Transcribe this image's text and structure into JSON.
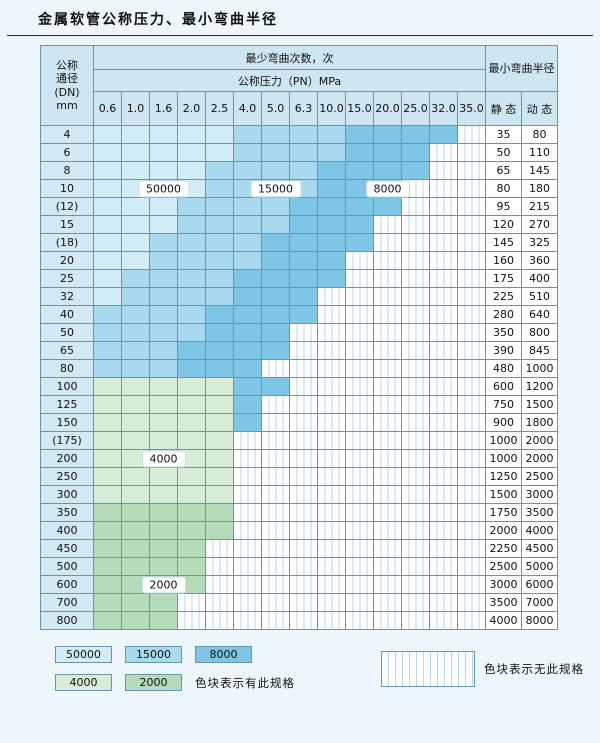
{
  "title": "金属软管公称压力、最小弯曲半径",
  "colors": {
    "cycles_50000": "#d2ecf8",
    "cycles_15000": "#a9d9ef",
    "cycles_8000": "#7ec5e6",
    "cycles_4000": "#d8edd8",
    "cycles_2000": "#b4dcba",
    "grid_line": "#6d93a7",
    "header_bg": "#cde6f2",
    "hatch_line": "#b9d6e6",
    "page_bg": "#edf6fa"
  },
  "table": {
    "header": {
      "dn_line1": "公称",
      "dn_line2": "通径",
      "dn_line3": "(DN)",
      "dn_line4": "mm",
      "cycles_title": "最少弯曲次数，次",
      "pressure_title": "公称压力（PN）MPa",
      "radius_title": "最小弯曲半径",
      "static_label": "静 态",
      "dynamic_label": "动 态"
    },
    "overlays": [
      {
        "row": 3,
        "col": 2,
        "text": "50000"
      },
      {
        "row": 3,
        "col": 6,
        "text": "15000"
      },
      {
        "row": 3,
        "col": 10,
        "text": "8000"
      },
      {
        "row": 18,
        "col": 2,
        "text": "4000"
      },
      {
        "row": 25,
        "col": 2,
        "text": "2000"
      }
    ]
  },
  "legend": {
    "row1": [
      {
        "text": "50000",
        "cls": "b1"
      },
      {
        "text": "15000",
        "cls": "b2"
      },
      {
        "text": "8000",
        "cls": "b3"
      }
    ],
    "row2": [
      {
        "text": "4000",
        "cls": "g1"
      },
      {
        "text": "2000",
        "cls": "g2"
      }
    ],
    "has_spec_text": "色块表示有此规格",
    "no_spec_text": "色块表示无此规格"
  },
  "chart_data": {
    "type": "table",
    "title": "金属软管公称压力、最小弯曲半径",
    "pressure_columns_MPa": [
      0.6,
      1.0,
      1.6,
      2.0,
      2.5,
      4.0,
      5.0,
      6.3,
      10.0,
      15.0,
      20.0,
      25.0,
      32.0,
      35.0
    ],
    "cell_class_meaning": {
      "b1": "最少弯曲次数 50000 次",
      "b2": "最少弯曲次数 15000 次",
      "b3": "最少弯曲次数 8000 次",
      "g1": "最少弯曲次数 4000 次",
      "g2": "最少弯曲次数 2000 次",
      "x": "无此规格"
    },
    "radius_columns": [
      "静态",
      "动态"
    ],
    "rows": [
      {
        "dn": "4",
        "cells": [
          "b1",
          "b1",
          "b1",
          "b1",
          "b1",
          "b2",
          "b2",
          "b2",
          "b2",
          "b3",
          "b3",
          "b3",
          "b3",
          "x"
        ],
        "static": 35,
        "dynamic": 80
      },
      {
        "dn": "6",
        "cells": [
          "b1",
          "b1",
          "b1",
          "b1",
          "b1",
          "b2",
          "b2",
          "b2",
          "b2",
          "b3",
          "b3",
          "b3",
          "x",
          "x"
        ],
        "static": 50,
        "dynamic": 110
      },
      {
        "dn": "8",
        "cells": [
          "b1",
          "b1",
          "b1",
          "b1",
          "b2",
          "b2",
          "b2",
          "b2",
          "b3",
          "b3",
          "b3",
          "b3",
          "x",
          "x"
        ],
        "static": 65,
        "dynamic": 145
      },
      {
        "dn": "10",
        "cells": [
          "b1",
          "b1",
          "b1",
          "b1",
          "b2",
          "b2",
          "b2",
          "b2",
          "b3",
          "b3",
          "b3",
          "x",
          "x",
          "x"
        ],
        "static": 80,
        "dynamic": 180
      },
      {
        "dn": "(12)",
        "cells": [
          "b1",
          "b1",
          "b1",
          "b2",
          "b2",
          "b2",
          "b2",
          "b3",
          "b3",
          "b3",
          "b3",
          "x",
          "x",
          "x"
        ],
        "static": 95,
        "dynamic": 215
      },
      {
        "dn": "15",
        "cells": [
          "b1",
          "b1",
          "b1",
          "b2",
          "b2",
          "b2",
          "b2",
          "b3",
          "b3",
          "b3",
          "x",
          "x",
          "x",
          "x"
        ],
        "static": 120,
        "dynamic": 270
      },
      {
        "dn": "(18)",
        "cells": [
          "b1",
          "b1",
          "b2",
          "b2",
          "b2",
          "b2",
          "b3",
          "b3",
          "b3",
          "b3",
          "x",
          "x",
          "x",
          "x"
        ],
        "static": 145,
        "dynamic": 325
      },
      {
        "dn": "20",
        "cells": [
          "b1",
          "b1",
          "b2",
          "b2",
          "b2",
          "b2",
          "b3",
          "b3",
          "b3",
          "x",
          "x",
          "x",
          "x",
          "x"
        ],
        "static": 160,
        "dynamic": 360
      },
      {
        "dn": "25",
        "cells": [
          "b1",
          "b2",
          "b2",
          "b2",
          "b2",
          "b3",
          "b3",
          "b3",
          "b3",
          "x",
          "x",
          "x",
          "x",
          "x"
        ],
        "static": 175,
        "dynamic": 400
      },
      {
        "dn": "32",
        "cells": [
          "b1",
          "b2",
          "b2",
          "b2",
          "b2",
          "b3",
          "b3",
          "b3",
          "x",
          "x",
          "x",
          "x",
          "x",
          "x"
        ],
        "static": 225,
        "dynamic": 510
      },
      {
        "dn": "40",
        "cells": [
          "b2",
          "b2",
          "b2",
          "b2",
          "b3",
          "b3",
          "b3",
          "b3",
          "x",
          "x",
          "x",
          "x",
          "x",
          "x"
        ],
        "static": 280,
        "dynamic": 640
      },
      {
        "dn": "50",
        "cells": [
          "b2",
          "b2",
          "b2",
          "b2",
          "b3",
          "b3",
          "b3",
          "x",
          "x",
          "x",
          "x",
          "x",
          "x",
          "x"
        ],
        "static": 350,
        "dynamic": 800
      },
      {
        "dn": "65",
        "cells": [
          "b2",
          "b2",
          "b2",
          "b3",
          "b3",
          "b3",
          "b3",
          "x",
          "x",
          "x",
          "x",
          "x",
          "x",
          "x"
        ],
        "static": 390,
        "dynamic": 845
      },
      {
        "dn": "80",
        "cells": [
          "b2",
          "b2",
          "b2",
          "b3",
          "b3",
          "b3",
          "x",
          "x",
          "x",
          "x",
          "x",
          "x",
          "x",
          "x"
        ],
        "static": 480,
        "dynamic": 1000
      },
      {
        "dn": "100",
        "cells": [
          "g1",
          "g1",
          "g1",
          "g1",
          "g1",
          "b3",
          "b3",
          "x",
          "x",
          "x",
          "x",
          "x",
          "x",
          "x"
        ],
        "static": 600,
        "dynamic": 1200
      },
      {
        "dn": "125",
        "cells": [
          "g1",
          "g1",
          "g1",
          "g1",
          "g1",
          "b3",
          "x",
          "x",
          "x",
          "x",
          "x",
          "x",
          "x",
          "x"
        ],
        "static": 750,
        "dynamic": 1500
      },
      {
        "dn": "150",
        "cells": [
          "g1",
          "g1",
          "g1",
          "g1",
          "g1",
          "b3",
          "x",
          "x",
          "x",
          "x",
          "x",
          "x",
          "x",
          "x"
        ],
        "static": 900,
        "dynamic": 1800
      },
      {
        "dn": "(175)",
        "cells": [
          "g1",
          "g1",
          "g1",
          "g1",
          "g1",
          "x",
          "x",
          "x",
          "x",
          "x",
          "x",
          "x",
          "x",
          "x"
        ],
        "static": 1000,
        "dynamic": 2000
      },
      {
        "dn": "200",
        "cells": [
          "g1",
          "g1",
          "g1",
          "g1",
          "g1",
          "x",
          "x",
          "x",
          "x",
          "x",
          "x",
          "x",
          "x",
          "x"
        ],
        "static": 1000,
        "dynamic": 2000
      },
      {
        "dn": "250",
        "cells": [
          "g1",
          "g1",
          "g1",
          "g1",
          "g1",
          "x",
          "x",
          "x",
          "x",
          "x",
          "x",
          "x",
          "x",
          "x"
        ],
        "static": 1250,
        "dynamic": 2500
      },
      {
        "dn": "300",
        "cells": [
          "g1",
          "g1",
          "g1",
          "g1",
          "g1",
          "x",
          "x",
          "x",
          "x",
          "x",
          "x",
          "x",
          "x",
          "x"
        ],
        "static": 1500,
        "dynamic": 3000
      },
      {
        "dn": "350",
        "cells": [
          "g2",
          "g2",
          "g2",
          "g2",
          "g2",
          "x",
          "x",
          "x",
          "x",
          "x",
          "x",
          "x",
          "x",
          "x"
        ],
        "static": 1750,
        "dynamic": 3500
      },
      {
        "dn": "400",
        "cells": [
          "g2",
          "g2",
          "g2",
          "g2",
          "g2",
          "x",
          "x",
          "x",
          "x",
          "x",
          "x",
          "x",
          "x",
          "x"
        ],
        "static": 2000,
        "dynamic": 4000
      },
      {
        "dn": "450",
        "cells": [
          "g2",
          "g2",
          "g2",
          "g2",
          "x",
          "x",
          "x",
          "x",
          "x",
          "x",
          "x",
          "x",
          "x",
          "x"
        ],
        "static": 2250,
        "dynamic": 4500
      },
      {
        "dn": "500",
        "cells": [
          "g2",
          "g2",
          "g2",
          "g2",
          "x",
          "x",
          "x",
          "x",
          "x",
          "x",
          "x",
          "x",
          "x",
          "x"
        ],
        "static": 2500,
        "dynamic": 5000
      },
      {
        "dn": "600",
        "cells": [
          "g2",
          "g2",
          "g2",
          "g2",
          "x",
          "x",
          "x",
          "x",
          "x",
          "x",
          "x",
          "x",
          "x",
          "x"
        ],
        "static": 3000,
        "dynamic": 6000
      },
      {
        "dn": "700",
        "cells": [
          "g2",
          "g2",
          "g2",
          "x",
          "x",
          "x",
          "x",
          "x",
          "x",
          "x",
          "x",
          "x",
          "x",
          "x"
        ],
        "static": 3500,
        "dynamic": 7000
      },
      {
        "dn": "800",
        "cells": [
          "g2",
          "g2",
          "g2",
          "x",
          "x",
          "x",
          "x",
          "x",
          "x",
          "x",
          "x",
          "x",
          "x",
          "x"
        ],
        "static": 4000,
        "dynamic": 8000
      }
    ]
  }
}
